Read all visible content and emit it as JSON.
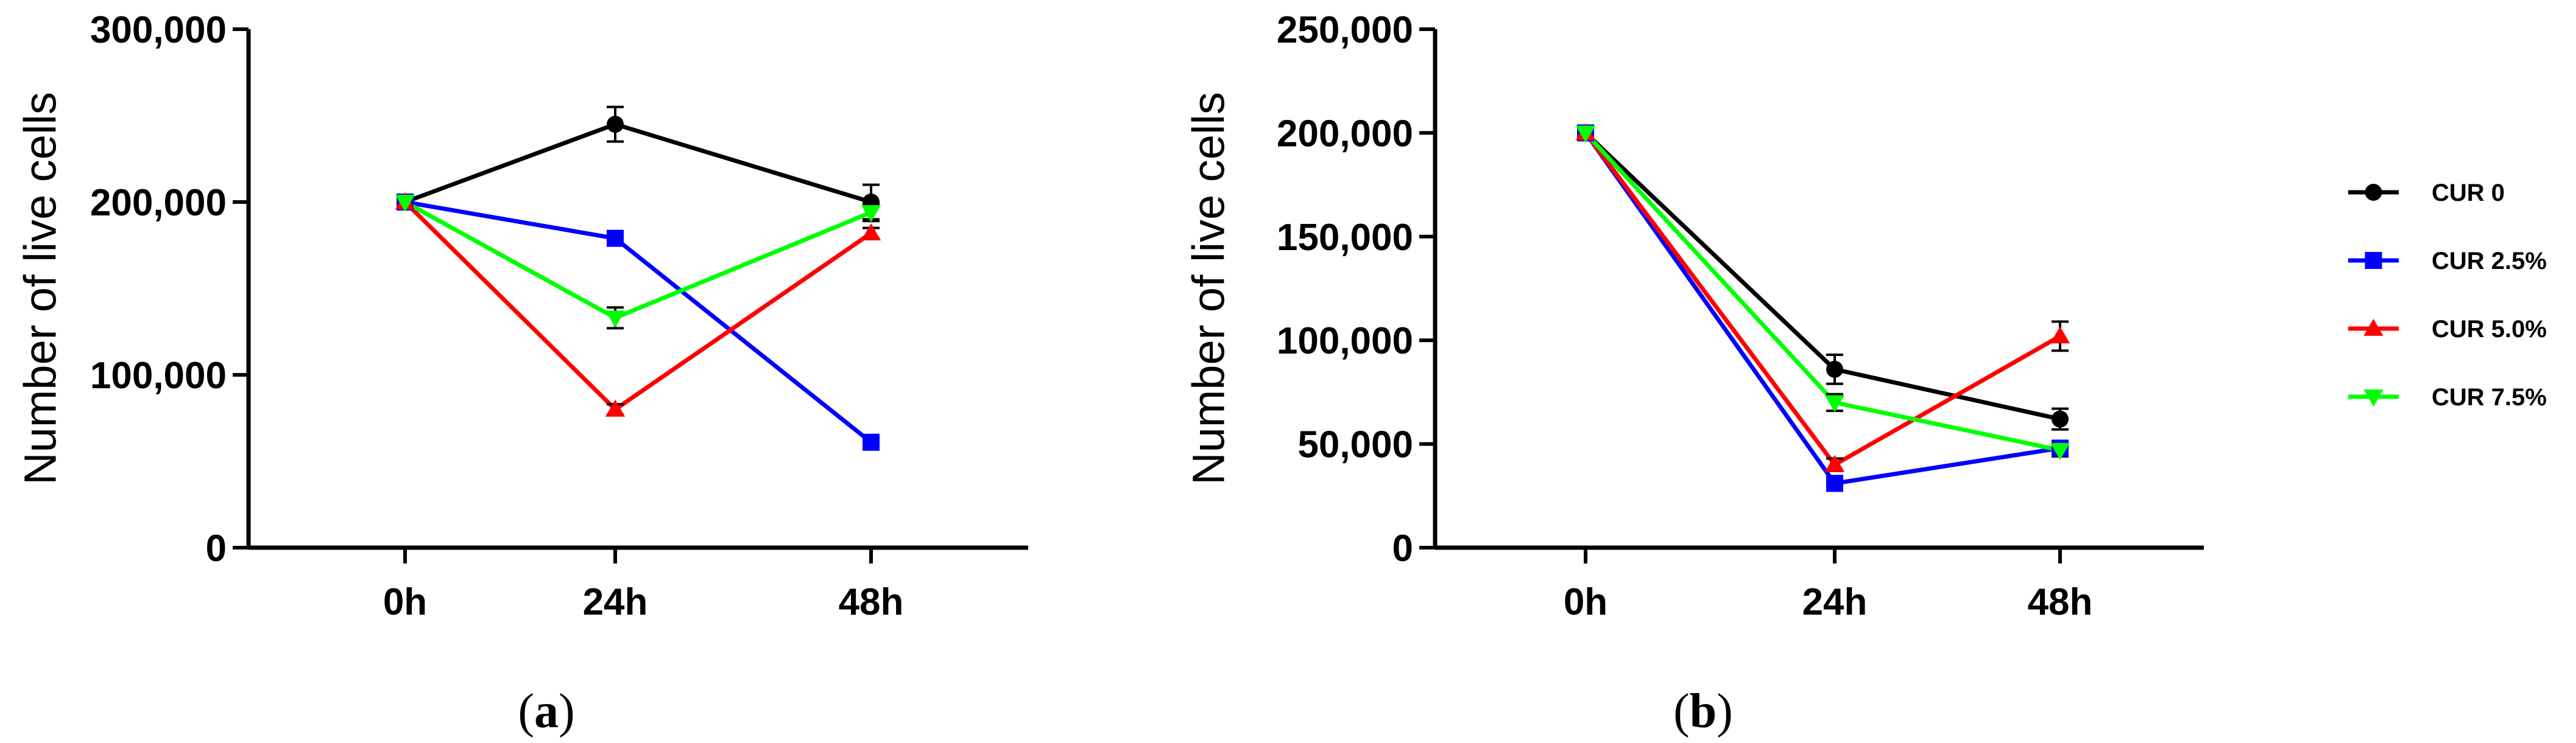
{
  "colors": {
    "CUR 0": "#000000",
    "CUR 2.5%": "#0000ff",
    "CUR 5.0%": "#ff0000",
    "CUR 7.5%": "#00ff00"
  },
  "markers": {
    "CUR 0": "circle",
    "CUR 2.5%": "square",
    "CUR 5.0%": "triangle-up",
    "CUR 7.5%": "triangle-down"
  },
  "legend": {
    "placement": "right",
    "entries": [
      "CUR 0",
      "CUR 2.5%",
      "CUR 5.0%",
      "CUR 7.5%"
    ]
  },
  "chart_data": [
    {
      "type": "line",
      "panel": "(a)",
      "panel_open": "(",
      "panel_letter": "a",
      "panel_close": ")",
      "title": "",
      "xlabel": "",
      "ylabel": "Number of live cells",
      "categories": [
        "0h",
        "24h",
        "48h"
      ],
      "ylim": [
        0,
        300000
      ],
      "yticks": [
        0,
        100000,
        200000,
        300000
      ],
      "ytick_labels": [
        "0",
        "100,000",
        "200,000",
        "300,000"
      ],
      "grid": false,
      "series": [
        {
          "name": "CUR 0",
          "values": [
            200000,
            245000,
            200000
          ],
          "errors": [
            0,
            10000,
            10000
          ]
        },
        {
          "name": "CUR 2.5%",
          "values": [
            200000,
            179000,
            61000
          ],
          "errors": [
            0,
            3000,
            2000
          ]
        },
        {
          "name": "CUR 5.0%",
          "values": [
            200000,
            80000,
            182000
          ],
          "errors": [
            0,
            3000,
            3000
          ]
        },
        {
          "name": "CUR 7.5%",
          "values": [
            200000,
            133000,
            194000
          ],
          "errors": [
            0,
            6000,
            5000
          ]
        }
      ]
    },
    {
      "type": "line",
      "panel": "(b)",
      "panel_open": "(",
      "panel_letter": "b",
      "panel_close": ")",
      "title": "",
      "xlabel": "",
      "ylabel": "Number of live cells",
      "categories": [
        "0h",
        "24h",
        "48h"
      ],
      "ylim": [
        0,
        250000
      ],
      "yticks": [
        0,
        50000,
        100000,
        150000,
        200000,
        250000
      ],
      "ytick_labels": [
        "0",
        "50,000",
        "100,000",
        "150,000",
        "200,000",
        "250,000"
      ],
      "grid": false,
      "series": [
        {
          "name": "CUR 0",
          "values": [
            200000,
            86000,
            62000
          ],
          "errors": [
            0,
            7000,
            5000
          ]
        },
        {
          "name": "CUR 2.5%",
          "values": [
            200000,
            31000,
            48000
          ],
          "errors": [
            0,
            2000,
            2000
          ]
        },
        {
          "name": "CUR 5.0%",
          "values": [
            200000,
            40000,
            102000
          ],
          "errors": [
            0,
            3000,
            7000
          ]
        },
        {
          "name": "CUR 7.5%",
          "values": [
            200000,
            70000,
            47000
          ],
          "errors": [
            0,
            4000,
            3000
          ]
        }
      ]
    }
  ]
}
